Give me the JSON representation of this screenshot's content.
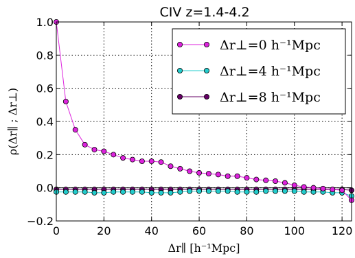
{
  "chart_data": {
    "type": "line",
    "title": "CIV z=1.4-4.2",
    "xlabel": "Δr∥ [h⁻¹Mpc]",
    "ylabel": "ρ(Δr∥ ; Δr⊥)",
    "xlim": [
      0,
      124
    ],
    "ylim": [
      -0.2,
      1.0
    ],
    "xticks": [
      "0",
      "20",
      "40",
      "60",
      "80",
      "100",
      "120"
    ],
    "yticks": [
      "−0.2",
      "0.0",
      "0.2",
      "0.4",
      "0.6",
      "0.8",
      "1.0"
    ],
    "grid": true,
    "legend_position": "top-right",
    "x": [
      0,
      4,
      8,
      12,
      16,
      20,
      24,
      28,
      32,
      36,
      40,
      44,
      48,
      52,
      56,
      60,
      64,
      68,
      72,
      76,
      80,
      84,
      88,
      92,
      96,
      100,
      104,
      108,
      112,
      116,
      120,
      124
    ],
    "series": [
      {
        "name": "Δr⊥=0 h⁻¹Mpc",
        "color": "#dd22dd",
        "values": [
          1.0,
          0.52,
          0.35,
          0.26,
          0.23,
          0.22,
          0.2,
          0.18,
          0.17,
          0.16,
          0.16,
          0.155,
          0.13,
          0.115,
          0.1,
          0.09,
          0.085,
          0.08,
          0.07,
          0.07,
          0.06,
          0.05,
          0.045,
          0.04,
          0.03,
          0.015,
          0.005,
          0.0,
          -0.005,
          -0.01,
          -0.015,
          -0.075
        ]
      },
      {
        "name": "Δr⊥=4 h⁻¹Mpc",
        "color": "#22cccc",
        "values": [
          -0.025,
          -0.025,
          -0.025,
          -0.025,
          -0.03,
          -0.03,
          -0.025,
          -0.025,
          -0.025,
          -0.025,
          -0.03,
          -0.03,
          -0.03,
          -0.025,
          -0.02,
          -0.02,
          -0.02,
          -0.02,
          -0.02,
          -0.025,
          -0.025,
          -0.025,
          -0.02,
          -0.02,
          -0.02,
          -0.02,
          -0.025,
          -0.025,
          -0.025,
          -0.03,
          -0.03,
          -0.05
        ]
      },
      {
        "name": "Δr⊥=8 h⁻¹Mpc",
        "color": "#660066",
        "values": [
          -0.01,
          -0.01,
          -0.01,
          -0.01,
          -0.01,
          -0.01,
          -0.01,
          -0.01,
          -0.01,
          -0.01,
          -0.01,
          -0.01,
          -0.01,
          -0.01,
          -0.01,
          -0.01,
          -0.01,
          -0.01,
          -0.01,
          -0.01,
          -0.01,
          -0.01,
          -0.01,
          -0.01,
          -0.01,
          -0.01,
          -0.01,
          -0.01,
          -0.01,
          -0.01,
          -0.01,
          -0.015
        ]
      }
    ]
  },
  "colors": {
    "grid": "#000000",
    "frame": "#000000",
    "background": "#ffffff"
  }
}
